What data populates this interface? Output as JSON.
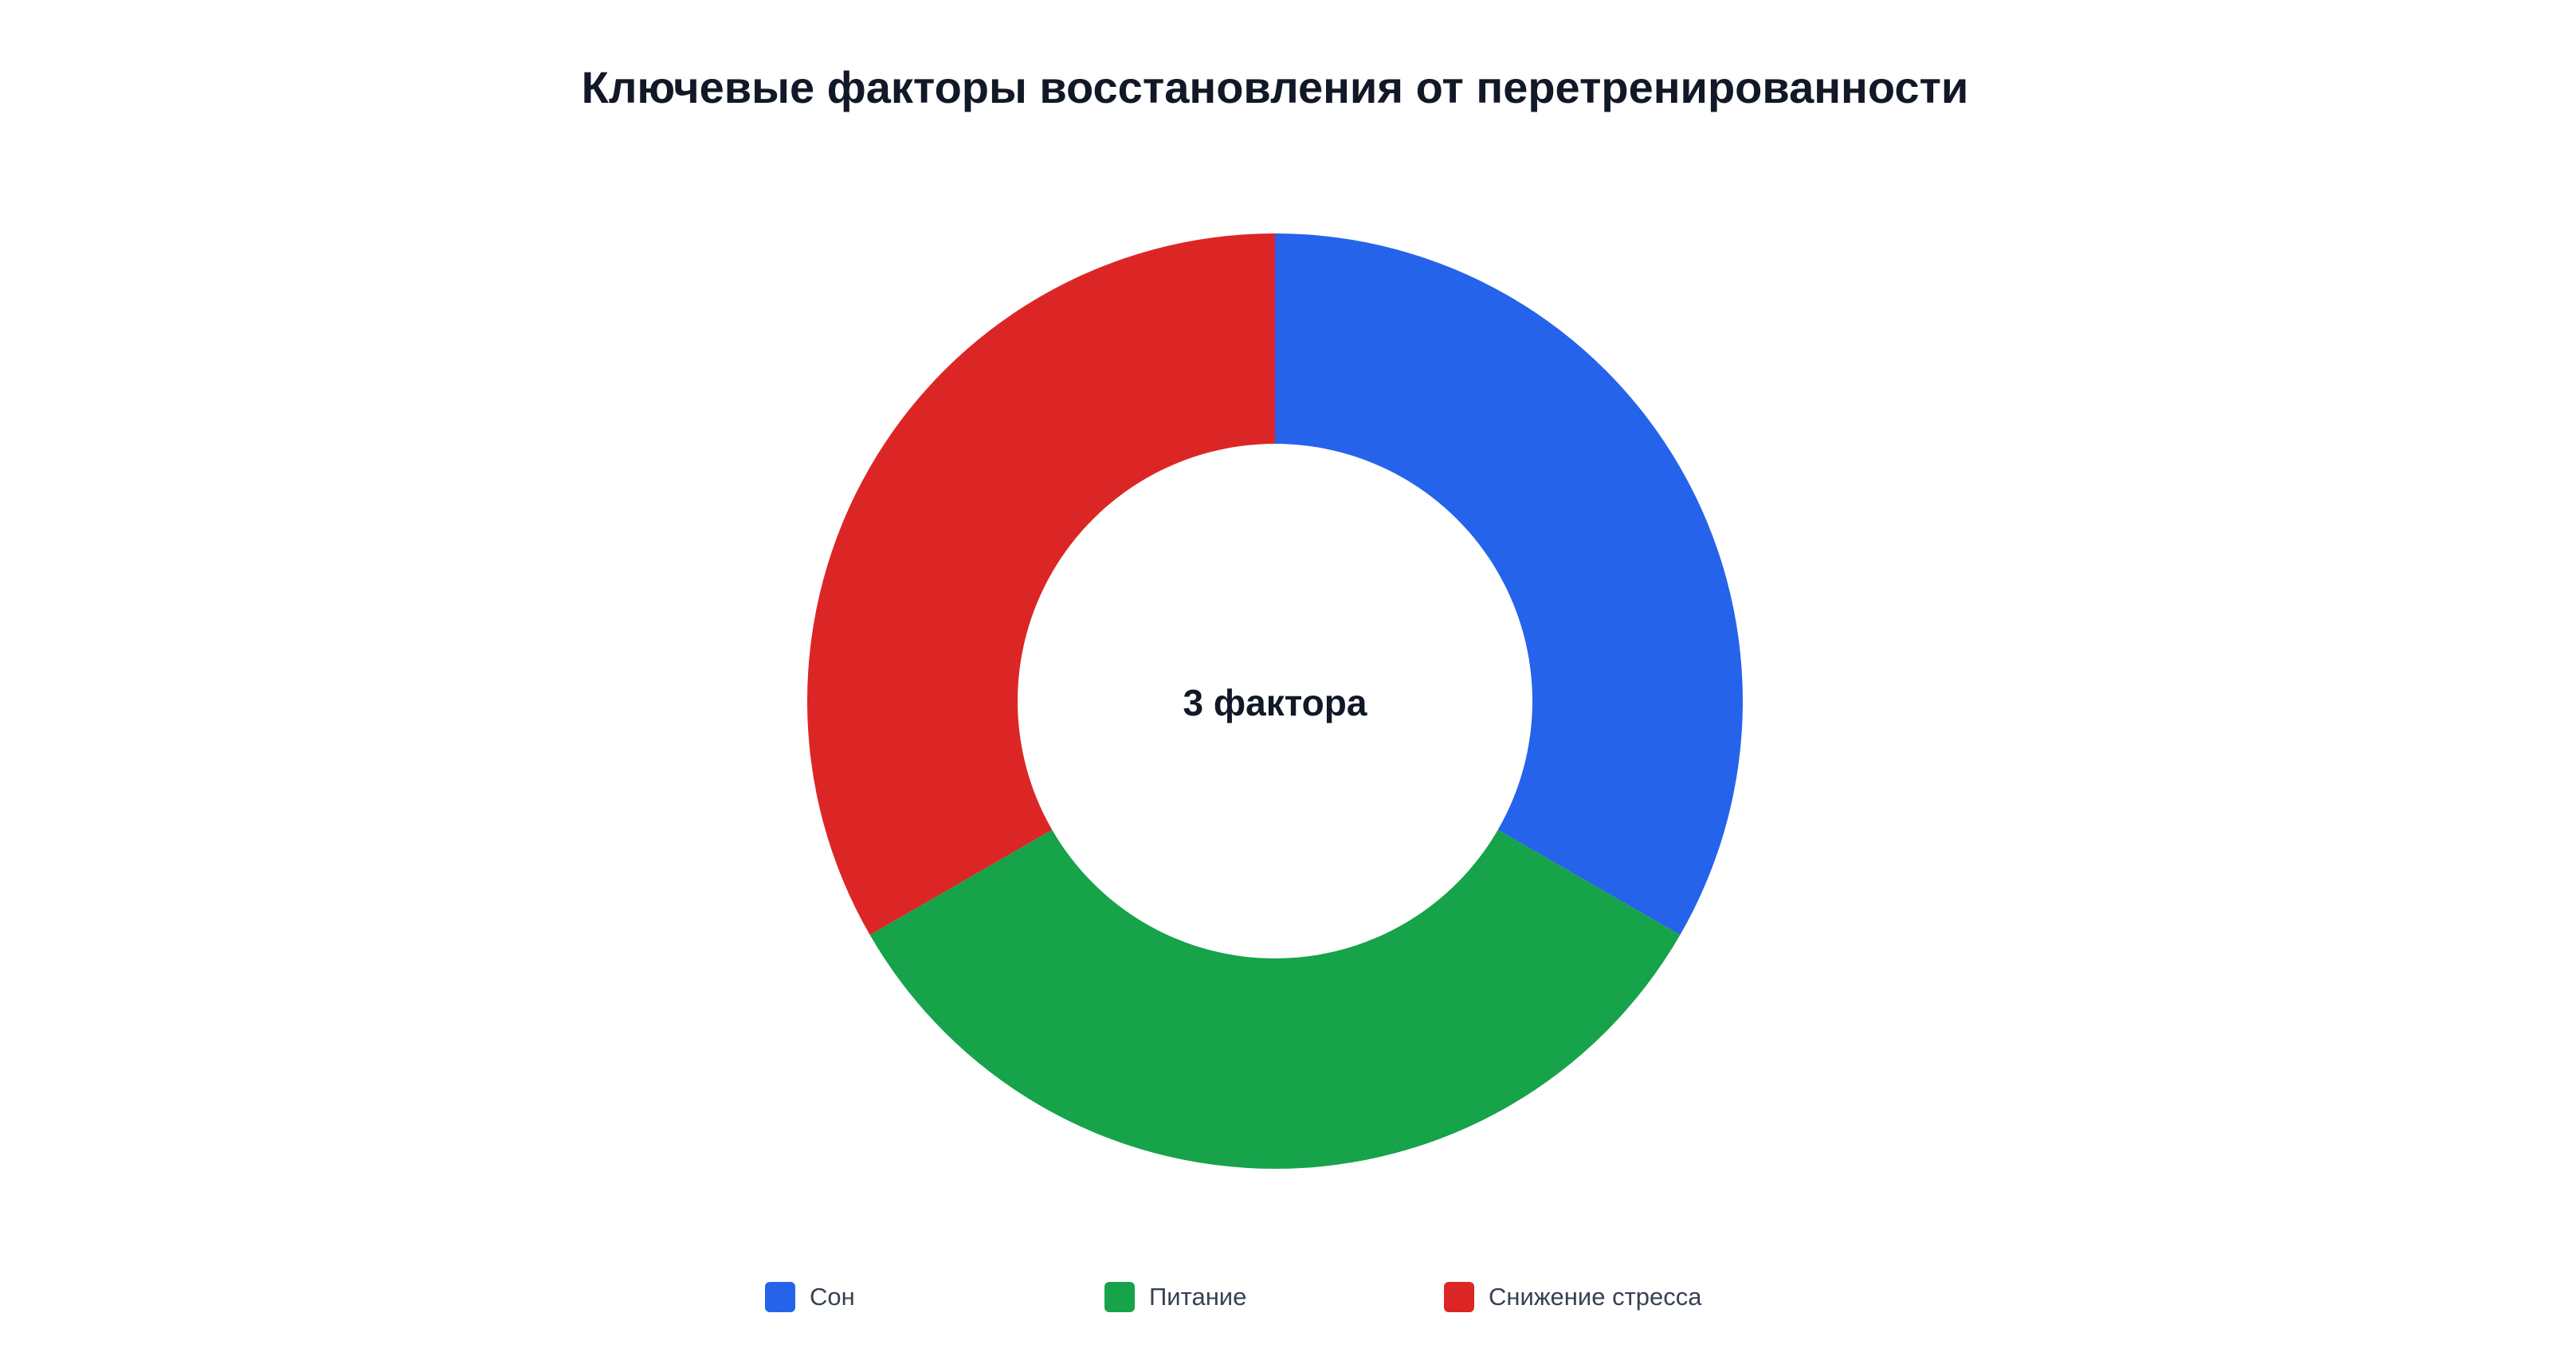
{
  "chart_data": {
    "type": "pie",
    "variant": "donut",
    "title": "Ключевые факторы восстановления от перетренированности",
    "center_label": "3 фактора",
    "categories": [
      "Сон",
      "Питание",
      "Снижение стресса"
    ],
    "values": [
      1,
      1,
      1
    ],
    "colors": [
      "#2563EB",
      "#16A34A",
      "#DC2626"
    ],
    "legend_position": "bottom",
    "grid": false
  }
}
